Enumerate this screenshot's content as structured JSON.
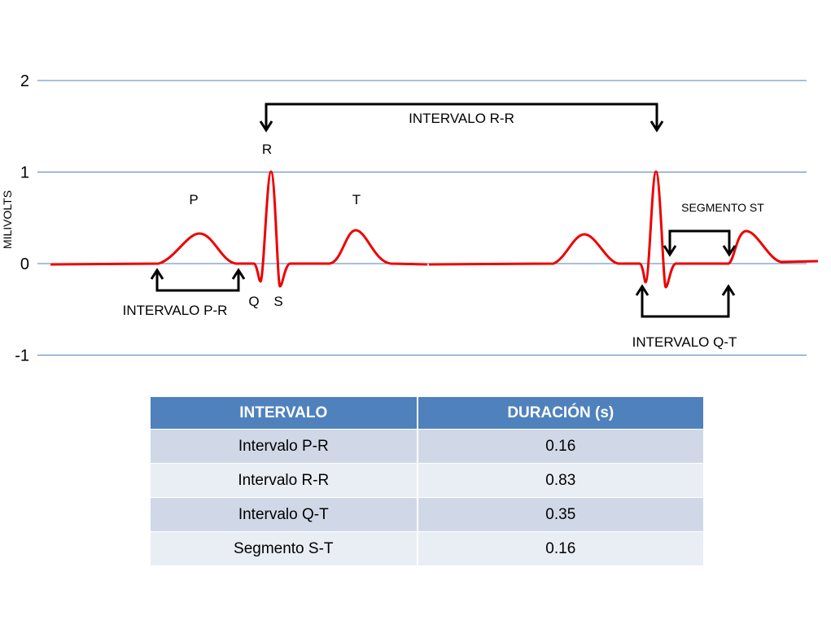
{
  "axis": {
    "title": "MILIVOLTS",
    "ticks": [
      2,
      1,
      0,
      -1
    ]
  },
  "waves": {
    "P": "P",
    "Q": "Q",
    "R": "R",
    "S": "S",
    "T": "T"
  },
  "annotations": {
    "rr": "INTERVALO R-R",
    "pr": "INTERVALO P-R",
    "st": "SEGMENTO ST",
    "qt": "INTERVALO Q-T"
  },
  "table": {
    "header": [
      "INTERVALO",
      "DURACIÓN (s)"
    ],
    "rows": [
      [
        "Intervalo P-R",
        0.16
      ],
      [
        "Intervalo R-R",
        0.83
      ],
      [
        "Intervalo Q-T",
        0.35
      ],
      [
        "Segmento S-T",
        0.16
      ]
    ]
  }
}
